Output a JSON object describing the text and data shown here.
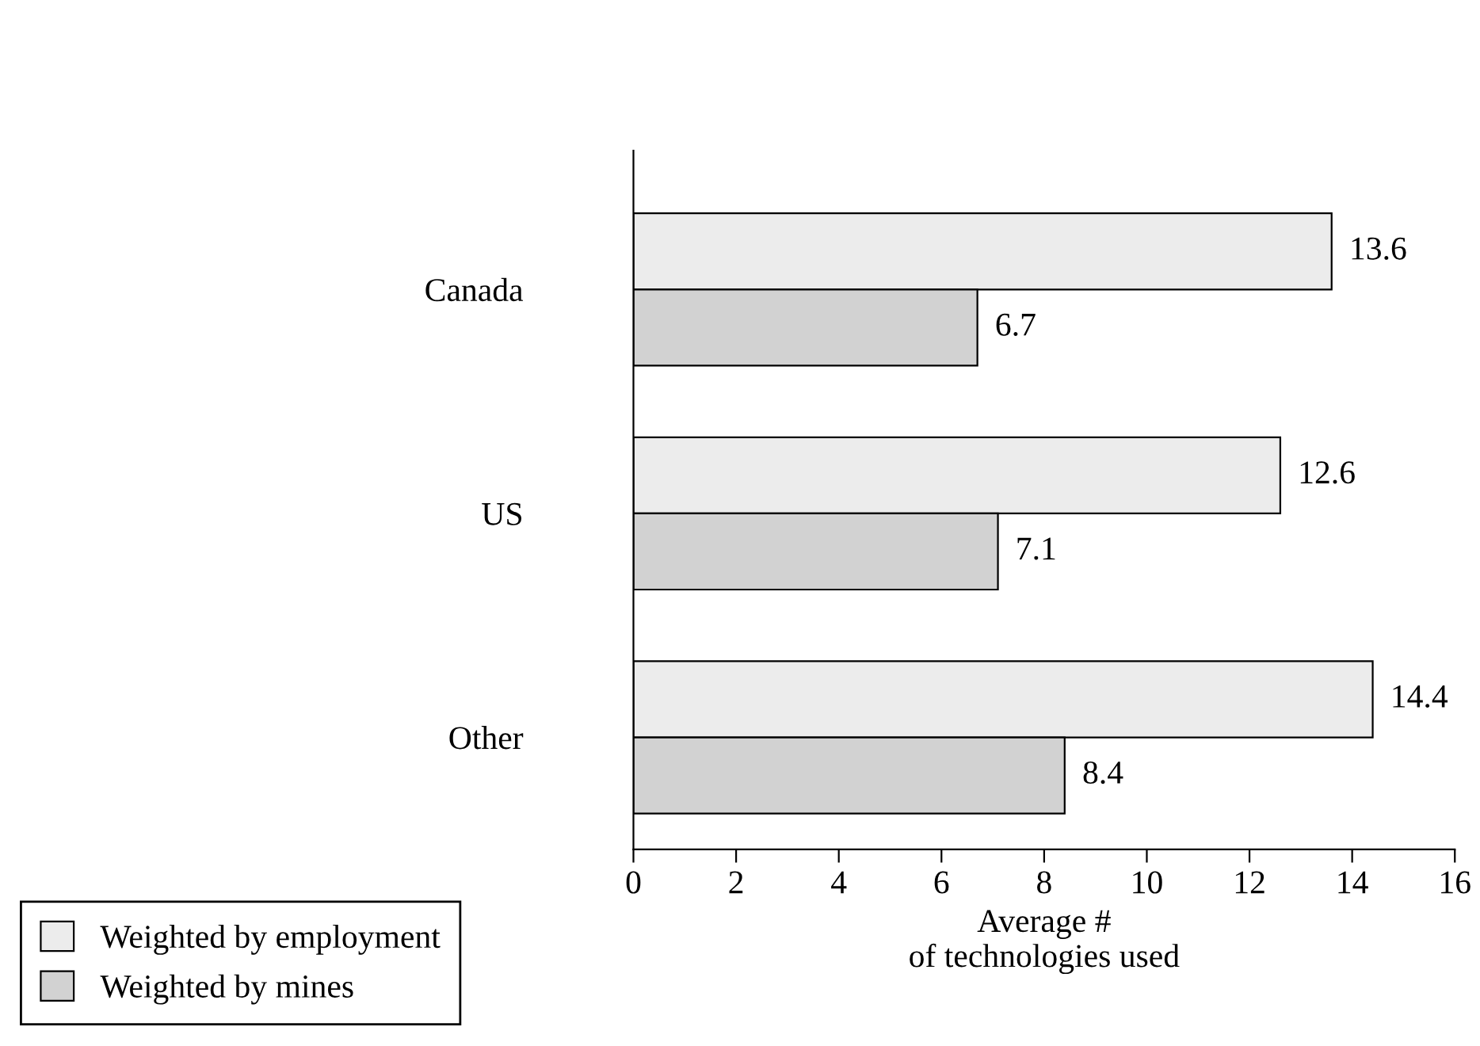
{
  "chart_data": {
    "type": "bar",
    "orientation": "horizontal",
    "xlabel": "Average #\nof technologies used",
    "categories": [
      "Canada",
      "US",
      "Other"
    ],
    "series": [
      {
        "name": "Weighted by employment",
        "color": "#ececec",
        "values": [
          13.6,
          12.6,
          14.4
        ]
      },
      {
        "name": "Weighted by mines",
        "color": "#d2d2d2",
        "values": [
          6.7,
          7.1,
          8.4
        ]
      }
    ],
    "xlim": [
      0,
      16
    ],
    "xticks": [
      0,
      2,
      4,
      6,
      8,
      10,
      12,
      14,
      16
    ],
    "data_labels": true,
    "grid": false,
    "legend": "bottom left"
  }
}
